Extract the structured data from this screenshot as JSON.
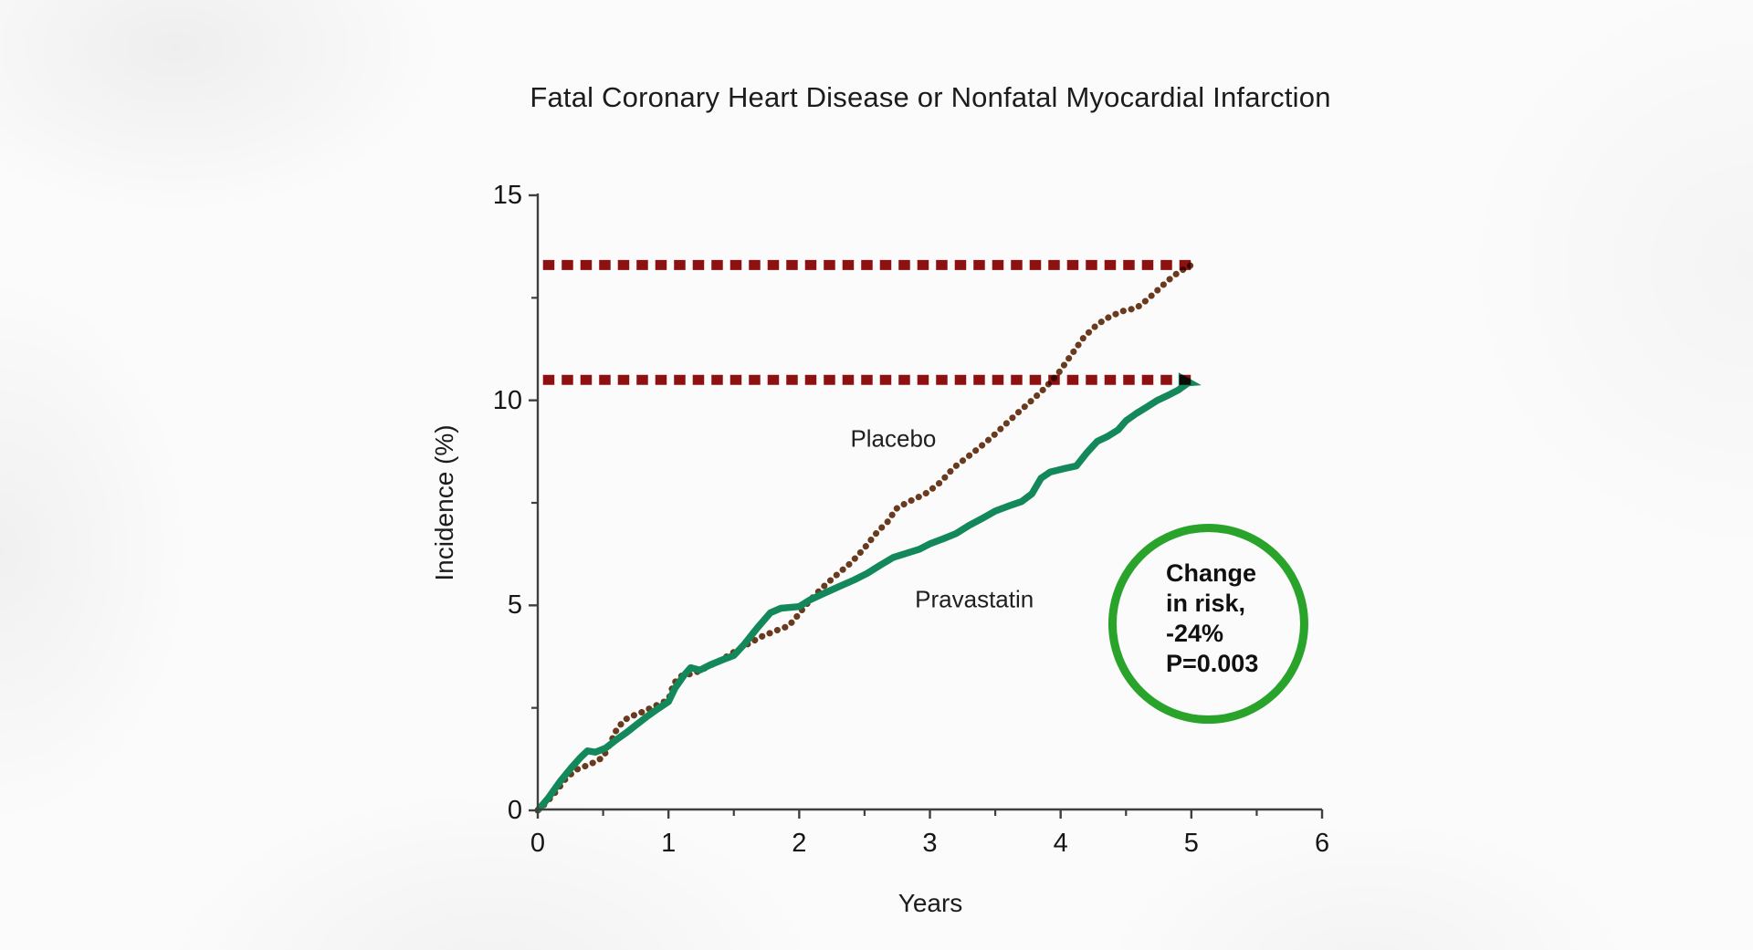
{
  "chart_data": {
    "type": "line",
    "title": "Fatal Coronary Heart Disease or Nonfatal Myocardial Infarction",
    "xlabel": "Years",
    "ylabel": "Incidence (%)",
    "xlim": [
      0,
      6
    ],
    "ylim": [
      0,
      15
    ],
    "x_ticks": [
      0,
      1,
      2,
      3,
      4,
      5,
      6
    ],
    "y_ticks": [
      0,
      5,
      10,
      15
    ],
    "x_minor_step": 0.5,
    "y_minor_step": 2.5,
    "grid": false,
    "legend_position": "inline-labels",
    "axis_color": "#3f3f3f",
    "series": [
      {
        "name": "Placebo",
        "color": "#6b3b1d",
        "style": "dotted",
        "label_at": {
          "x": 2.72,
          "y": 9.05
        },
        "points": [
          [
            0,
            0
          ],
          [
            0.07,
            0.2
          ],
          [
            0.15,
            0.5
          ],
          [
            0.22,
            0.8
          ],
          [
            0.3,
            1.0
          ],
          [
            0.38,
            1.1
          ],
          [
            0.45,
            1.2
          ],
          [
            0.5,
            1.3
          ],
          [
            0.55,
            1.6
          ],
          [
            0.6,
            1.95
          ],
          [
            0.66,
            2.2
          ],
          [
            0.72,
            2.3
          ],
          [
            0.8,
            2.4
          ],
          [
            0.9,
            2.55
          ],
          [
            1.0,
            2.7
          ],
          [
            1.04,
            3.1
          ],
          [
            1.1,
            3.28
          ],
          [
            1.2,
            3.35
          ],
          [
            1.3,
            3.5
          ],
          [
            1.42,
            3.7
          ],
          [
            1.52,
            3.9
          ],
          [
            1.62,
            4.08
          ],
          [
            1.72,
            4.25
          ],
          [
            1.82,
            4.38
          ],
          [
            1.92,
            4.5
          ],
          [
            1.98,
            4.72
          ],
          [
            2.05,
            5.0
          ],
          [
            2.12,
            5.25
          ],
          [
            2.2,
            5.5
          ],
          [
            2.3,
            5.78
          ],
          [
            2.4,
            6.05
          ],
          [
            2.5,
            6.4
          ],
          [
            2.6,
            6.8
          ],
          [
            2.68,
            7.05
          ],
          [
            2.74,
            7.35
          ],
          [
            2.82,
            7.5
          ],
          [
            2.9,
            7.62
          ],
          [
            2.98,
            7.75
          ],
          [
            3.08,
            8.0
          ],
          [
            3.18,
            8.35
          ],
          [
            3.28,
            8.6
          ],
          [
            3.38,
            8.85
          ],
          [
            3.48,
            9.12
          ],
          [
            3.58,
            9.42
          ],
          [
            3.68,
            9.72
          ],
          [
            3.78,
            10.0
          ],
          [
            3.88,
            10.3
          ],
          [
            3.98,
            10.65
          ],
          [
            4.08,
            11.1
          ],
          [
            4.18,
            11.55
          ],
          [
            4.28,
            11.85
          ],
          [
            4.38,
            12.05
          ],
          [
            4.48,
            12.18
          ],
          [
            4.58,
            12.25
          ],
          [
            4.66,
            12.45
          ],
          [
            4.74,
            12.68
          ],
          [
            4.82,
            12.92
          ],
          [
            4.9,
            13.12
          ],
          [
            5.0,
            13.3
          ]
        ],
        "endpoint_value": 13.3
      },
      {
        "name": "Pravastatin",
        "color": "#128a5c",
        "style": "solid",
        "label_at": {
          "x": 3.34,
          "y": 5.15
        },
        "points": [
          [
            0,
            0
          ],
          [
            0.08,
            0.3
          ],
          [
            0.17,
            0.7
          ],
          [
            0.26,
            1.05
          ],
          [
            0.33,
            1.3
          ],
          [
            0.38,
            1.45
          ],
          [
            0.44,
            1.42
          ],
          [
            0.52,
            1.52
          ],
          [
            0.6,
            1.72
          ],
          [
            0.68,
            1.9
          ],
          [
            0.76,
            2.1
          ],
          [
            0.84,
            2.3
          ],
          [
            0.92,
            2.48
          ],
          [
            1.0,
            2.65
          ],
          [
            1.05,
            2.98
          ],
          [
            1.12,
            3.3
          ],
          [
            1.17,
            3.48
          ],
          [
            1.24,
            3.42
          ],
          [
            1.32,
            3.55
          ],
          [
            1.42,
            3.68
          ],
          [
            1.5,
            3.78
          ],
          [
            1.58,
            4.05
          ],
          [
            1.68,
            4.45
          ],
          [
            1.78,
            4.82
          ],
          [
            1.86,
            4.93
          ],
          [
            2.0,
            4.97
          ],
          [
            2.08,
            5.13
          ],
          [
            2.18,
            5.28
          ],
          [
            2.3,
            5.45
          ],
          [
            2.42,
            5.62
          ],
          [
            2.52,
            5.78
          ],
          [
            2.62,
            5.98
          ],
          [
            2.72,
            6.17
          ],
          [
            2.82,
            6.27
          ],
          [
            2.92,
            6.37
          ],
          [
            3.0,
            6.5
          ],
          [
            3.1,
            6.62
          ],
          [
            3.2,
            6.75
          ],
          [
            3.3,
            6.95
          ],
          [
            3.4,
            7.12
          ],
          [
            3.5,
            7.3
          ],
          [
            3.6,
            7.42
          ],
          [
            3.7,
            7.53
          ],
          [
            3.78,
            7.72
          ],
          [
            3.85,
            8.1
          ],
          [
            3.92,
            8.25
          ],
          [
            4.02,
            8.33
          ],
          [
            4.12,
            8.4
          ],
          [
            4.2,
            8.72
          ],
          [
            4.28,
            9.0
          ],
          [
            4.36,
            9.12
          ],
          [
            4.44,
            9.28
          ],
          [
            4.5,
            9.5
          ],
          [
            4.58,
            9.68
          ],
          [
            4.66,
            9.84
          ],
          [
            4.74,
            10.0
          ],
          [
            4.82,
            10.12
          ],
          [
            4.9,
            10.25
          ],
          [
            5.0,
            10.48
          ]
        ],
        "endpoint_value": 10.5,
        "end_marker": "arrow-tip"
      }
    ],
    "reference_lines": [
      {
        "y": 13.3,
        "x_start": 0.04,
        "x_end": 5.03,
        "color": "#8e1111",
        "style": "dashed"
      },
      {
        "y": 10.5,
        "x_start": 0.04,
        "x_end": 5.03,
        "color": "#8e1111",
        "style": "dashed"
      }
    ],
    "annotation_circle": {
      "lines": [
        "Change",
        "in risk,",
        "-24%",
        "P=0.003"
      ],
      "stroke_color": "#2aa32a",
      "text_color": "#101010",
      "center": {
        "x": 5.13,
        "y": 4.55
      },
      "radius_px": 105
    }
  }
}
